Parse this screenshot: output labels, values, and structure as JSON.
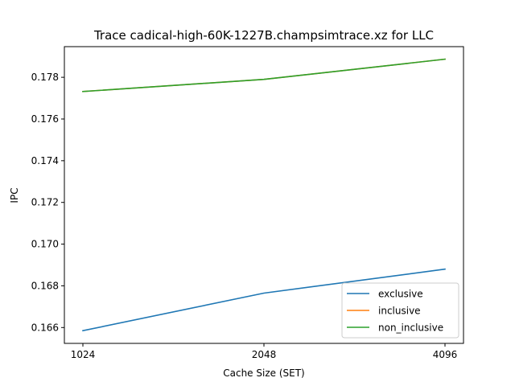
{
  "chart_data": {
    "type": "line",
    "title": "Trace cadical-high-60K-1227B.champsimtrace.xz for LLC",
    "xlabel": "Cache Size (SET)",
    "ylabel": "IPC",
    "x": [
      1024,
      2048,
      4096
    ],
    "x_tick_labels": [
      "1024",
      "2048",
      "4096"
    ],
    "x_scale": "categorical-evenly-spaced",
    "ylim": [
      0.16524,
      0.17947
    ],
    "y_ticks": [
      0.166,
      0.168,
      0.17,
      0.172,
      0.174,
      0.176,
      0.178
    ],
    "y_tick_labels": [
      "0.166",
      "0.168",
      "0.170",
      "0.172",
      "0.174",
      "0.176",
      "0.178"
    ],
    "grid": false,
    "legend_position": "lower-right",
    "series": [
      {
        "name": "exclusive",
        "values": [
          0.16585,
          0.16765,
          0.1688
        ],
        "color": "#1f77b4"
      },
      {
        "name": "inclusive",
        "values": [
          0.17732,
          0.1779,
          0.17887
        ],
        "color": "#ff7f0e"
      },
      {
        "name": "non_inclusive",
        "values": [
          0.17732,
          0.1779,
          0.17887
        ],
        "color": "#2ca02c"
      }
    ]
  }
}
